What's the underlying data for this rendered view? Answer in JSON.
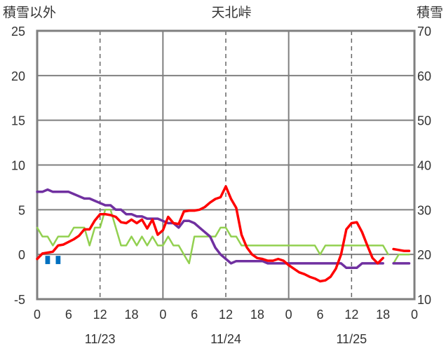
{
  "chart_data": {
    "type": "line",
    "title": "天北峠",
    "left_axis_label": "積雪以外",
    "right_axis_label": "積雪",
    "left_ylim": [
      -5,
      25
    ],
    "left_ticks": [
      "25",
      "20",
      "15",
      "10",
      "5",
      "0",
      "-5"
    ],
    "right_ylim": [
      10,
      70
    ],
    "right_ticks": [
      "70",
      "60",
      "50",
      "40",
      "30",
      "20",
      "10"
    ],
    "x_range_hours": [
      0,
      72
    ],
    "x_tick_labels": [
      "0",
      "6",
      "12",
      "18",
      "0",
      "6",
      "12",
      "18",
      "0",
      "6",
      "12",
      "18",
      "0"
    ],
    "date_labels": [
      {
        "label": "11/23",
        "hour": 12
      },
      {
        "label": "11/24",
        "hour": 36
      },
      {
        "label": "11/25",
        "hour": 60
      }
    ],
    "grid": "dashed at 12h, solid at day boundaries",
    "colors": {
      "temperature": "#ff0000",
      "wind": "#92d050",
      "precipitation": "#0070c0",
      "snow_depth": "#7030a0",
      "frame": "#7f7f7f",
      "grid": "#666666"
    },
    "series": [
      {
        "key": "temperature",
        "axis": "left",
        "segments": [
          [
            [
              0,
              -0.5
            ],
            [
              1,
              0.1
            ],
            [
              2,
              0.2
            ],
            [
              3,
              0.3
            ],
            [
              4,
              1.0
            ],
            [
              5,
              1.1
            ],
            [
              6,
              1.4
            ],
            [
              7,
              1.7
            ],
            [
              8,
              2.1
            ],
            [
              9,
              2.8
            ],
            [
              10,
              2.8
            ],
            [
              11,
              3.8
            ],
            [
              12,
              4.5
            ],
            [
              13,
              4.5
            ],
            [
              14,
              4.4
            ],
            [
              15,
              4.2
            ],
            [
              16,
              3.6
            ],
            [
              17,
              3.5
            ],
            [
              18,
              3.9
            ],
            [
              19,
              3.5
            ],
            [
              20,
              3.9
            ],
            [
              21,
              2.9
            ],
            [
              22,
              3.9
            ],
            [
              23,
              2.2
            ],
            [
              24,
              2.7
            ],
            [
              25,
              4.2
            ],
            [
              26,
              3.5
            ],
            [
              27,
              3.4
            ],
            [
              28,
              4.8
            ],
            [
              29,
              4.9
            ],
            [
              30,
              4.9
            ],
            [
              31,
              5.0
            ],
            [
              32,
              5.3
            ],
            [
              33,
              5.8
            ],
            [
              34,
              6.2
            ],
            [
              35,
              6.4
            ],
            [
              36,
              7.6
            ],
            [
              37,
              6.2
            ],
            [
              38,
              5.2
            ],
            [
              39,
              2.2
            ],
            [
              40,
              0.8
            ],
            [
              41,
              0.0
            ],
            [
              42,
              -0.4
            ],
            [
              43,
              -0.5
            ],
            [
              44,
              -0.7
            ],
            [
              45,
              -0.7
            ],
            [
              46,
              -0.5
            ],
            [
              47,
              -0.7
            ],
            [
              48,
              -1.2
            ],
            [
              49,
              -1.6
            ],
            [
              50,
              -2.0
            ],
            [
              51,
              -2.2
            ],
            [
              52,
              -2.5
            ],
            [
              53,
              -2.7
            ],
            [
              54,
              -3.0
            ],
            [
              55,
              -2.9
            ],
            [
              56,
              -2.5
            ],
            [
              57,
              -1.6
            ],
            [
              58,
              0.0
            ],
            [
              59,
              2.8
            ],
            [
              60,
              3.5
            ],
            [
              61,
              3.6
            ],
            [
              62,
              2.5
            ],
            [
              63,
              1.0
            ],
            [
              64,
              -0.4
            ],
            [
              65,
              -1.0
            ],
            [
              66,
              -0.4
            ]
          ],
          [
            [
              68,
              0.6
            ],
            [
              69,
              0.5
            ],
            [
              70,
              0.4
            ],
            [
              71,
              0.4
            ]
          ]
        ]
      },
      {
        "key": "wind",
        "axis": "left",
        "segments": [
          [
            [
              0,
              3
            ],
            [
              1,
              2
            ],
            [
              2,
              2
            ],
            [
              3,
              1
            ],
            [
              4,
              2
            ],
            [
              5,
              2
            ],
            [
              6,
              2
            ],
            [
              7,
              3
            ],
            [
              8,
              3
            ],
            [
              9,
              3
            ],
            [
              10,
              1
            ],
            [
              11,
              3
            ],
            [
              12,
              3
            ],
            [
              13,
              5
            ],
            [
              14,
              5
            ],
            [
              15,
              3
            ],
            [
              16,
              1
            ],
            [
              17,
              1
            ],
            [
              18,
              2
            ],
            [
              19,
              1
            ],
            [
              20,
              2
            ],
            [
              21,
              1
            ],
            [
              22,
              2
            ],
            [
              23,
              1
            ],
            [
              24,
              1
            ],
            [
              25,
              2
            ],
            [
              26,
              1
            ],
            [
              27,
              1
            ],
            [
              28,
              0
            ],
            [
              29,
              -1
            ],
            [
              30,
              2
            ],
            [
              31,
              2
            ],
            [
              32,
              2
            ],
            [
              33,
              2
            ],
            [
              34,
              2
            ],
            [
              35,
              3
            ],
            [
              36,
              3
            ],
            [
              37,
              2
            ],
            [
              38,
              2
            ],
            [
              39,
              1
            ],
            [
              40,
              1
            ],
            [
              41,
              1
            ],
            [
              42,
              1
            ],
            [
              43,
              1
            ],
            [
              44,
              1
            ],
            [
              45,
              1
            ],
            [
              46,
              1
            ],
            [
              47,
              1
            ],
            [
              48,
              1
            ],
            [
              49,
              1
            ],
            [
              50,
              1
            ],
            [
              51,
              1
            ],
            [
              52,
              1
            ],
            [
              53,
              1
            ],
            [
              54,
              0
            ],
            [
              55,
              1
            ],
            [
              56,
              1
            ],
            [
              57,
              1
            ],
            [
              58,
              1
            ],
            [
              59,
              1
            ],
            [
              60,
              1
            ],
            [
              61,
              1
            ],
            [
              62,
              1
            ],
            [
              63,
              1
            ],
            [
              64,
              1
            ],
            [
              65,
              1
            ],
            [
              66,
              1
            ],
            [
              67,
              0
            ]
          ],
          [
            [
              68,
              -1
            ],
            [
              69,
              0
            ],
            [
              70,
              0
            ],
            [
              71,
              0
            ]
          ]
        ]
      },
      {
        "key": "snow_depth",
        "axis": "right",
        "segments": [
          [
            [
              0,
              34
            ],
            [
              1,
              34
            ],
            [
              2,
              34.5
            ],
            [
              3,
              34
            ],
            [
              4,
              34
            ],
            [
              5,
              34
            ],
            [
              6,
              34
            ],
            [
              7,
              33.5
            ],
            [
              8,
              33
            ],
            [
              9,
              32.5
            ],
            [
              10,
              32.5
            ],
            [
              11,
              32
            ],
            [
              12,
              31.5
            ],
            [
              13,
              31
            ],
            [
              14,
              31
            ],
            [
              15,
              30
            ],
            [
              16,
              30
            ],
            [
              17,
              29
            ],
            [
              18,
              29
            ],
            [
              19,
              28.5
            ],
            [
              20,
              28.5
            ],
            [
              21,
              28
            ],
            [
              22,
              28
            ],
            [
              23,
              28
            ],
            [
              24,
              27.5
            ],
            [
              25,
              27
            ],
            [
              26,
              27
            ],
            [
              27,
              26
            ],
            [
              28,
              27.5
            ],
            [
              29,
              27.5
            ],
            [
              30,
              27
            ],
            [
              31,
              26
            ],
            [
              32,
              25
            ],
            [
              33,
              24
            ],
            [
              34,
              21.5
            ],
            [
              35,
              20
            ],
            [
              36,
              19
            ],
            [
              37,
              18
            ],
            [
              38,
              18.5
            ],
            [
              39,
              18.5
            ],
            [
              40,
              18.5
            ],
            [
              41,
              18.5
            ],
            [
              42,
              18.5
            ],
            [
              43,
              18.5
            ],
            [
              44,
              18
            ],
            [
              45,
              18
            ],
            [
              46,
              18
            ],
            [
              47,
              18
            ],
            [
              48,
              18
            ],
            [
              49,
              18
            ],
            [
              50,
              18
            ],
            [
              51,
              18
            ],
            [
              52,
              18
            ],
            [
              53,
              18
            ],
            [
              54,
              18
            ],
            [
              55,
              18
            ],
            [
              56,
              18
            ],
            [
              57,
              18
            ],
            [
              58,
              18
            ],
            [
              59,
              17
            ],
            [
              60,
              17
            ],
            [
              61,
              17
            ],
            [
              62,
              18
            ],
            [
              63,
              18
            ],
            [
              64,
              18
            ],
            [
              65,
              18
            ],
            [
              66,
              18
            ]
          ],
          [
            [
              68,
              18
            ],
            [
              69,
              18
            ],
            [
              70,
              18
            ],
            [
              71,
              18
            ]
          ]
        ]
      }
    ],
    "precipitation": {
      "axis": "left",
      "bars": [
        {
          "hour": 2,
          "value": -1
        },
        {
          "hour": 4,
          "value": -1
        }
      ]
    }
  }
}
